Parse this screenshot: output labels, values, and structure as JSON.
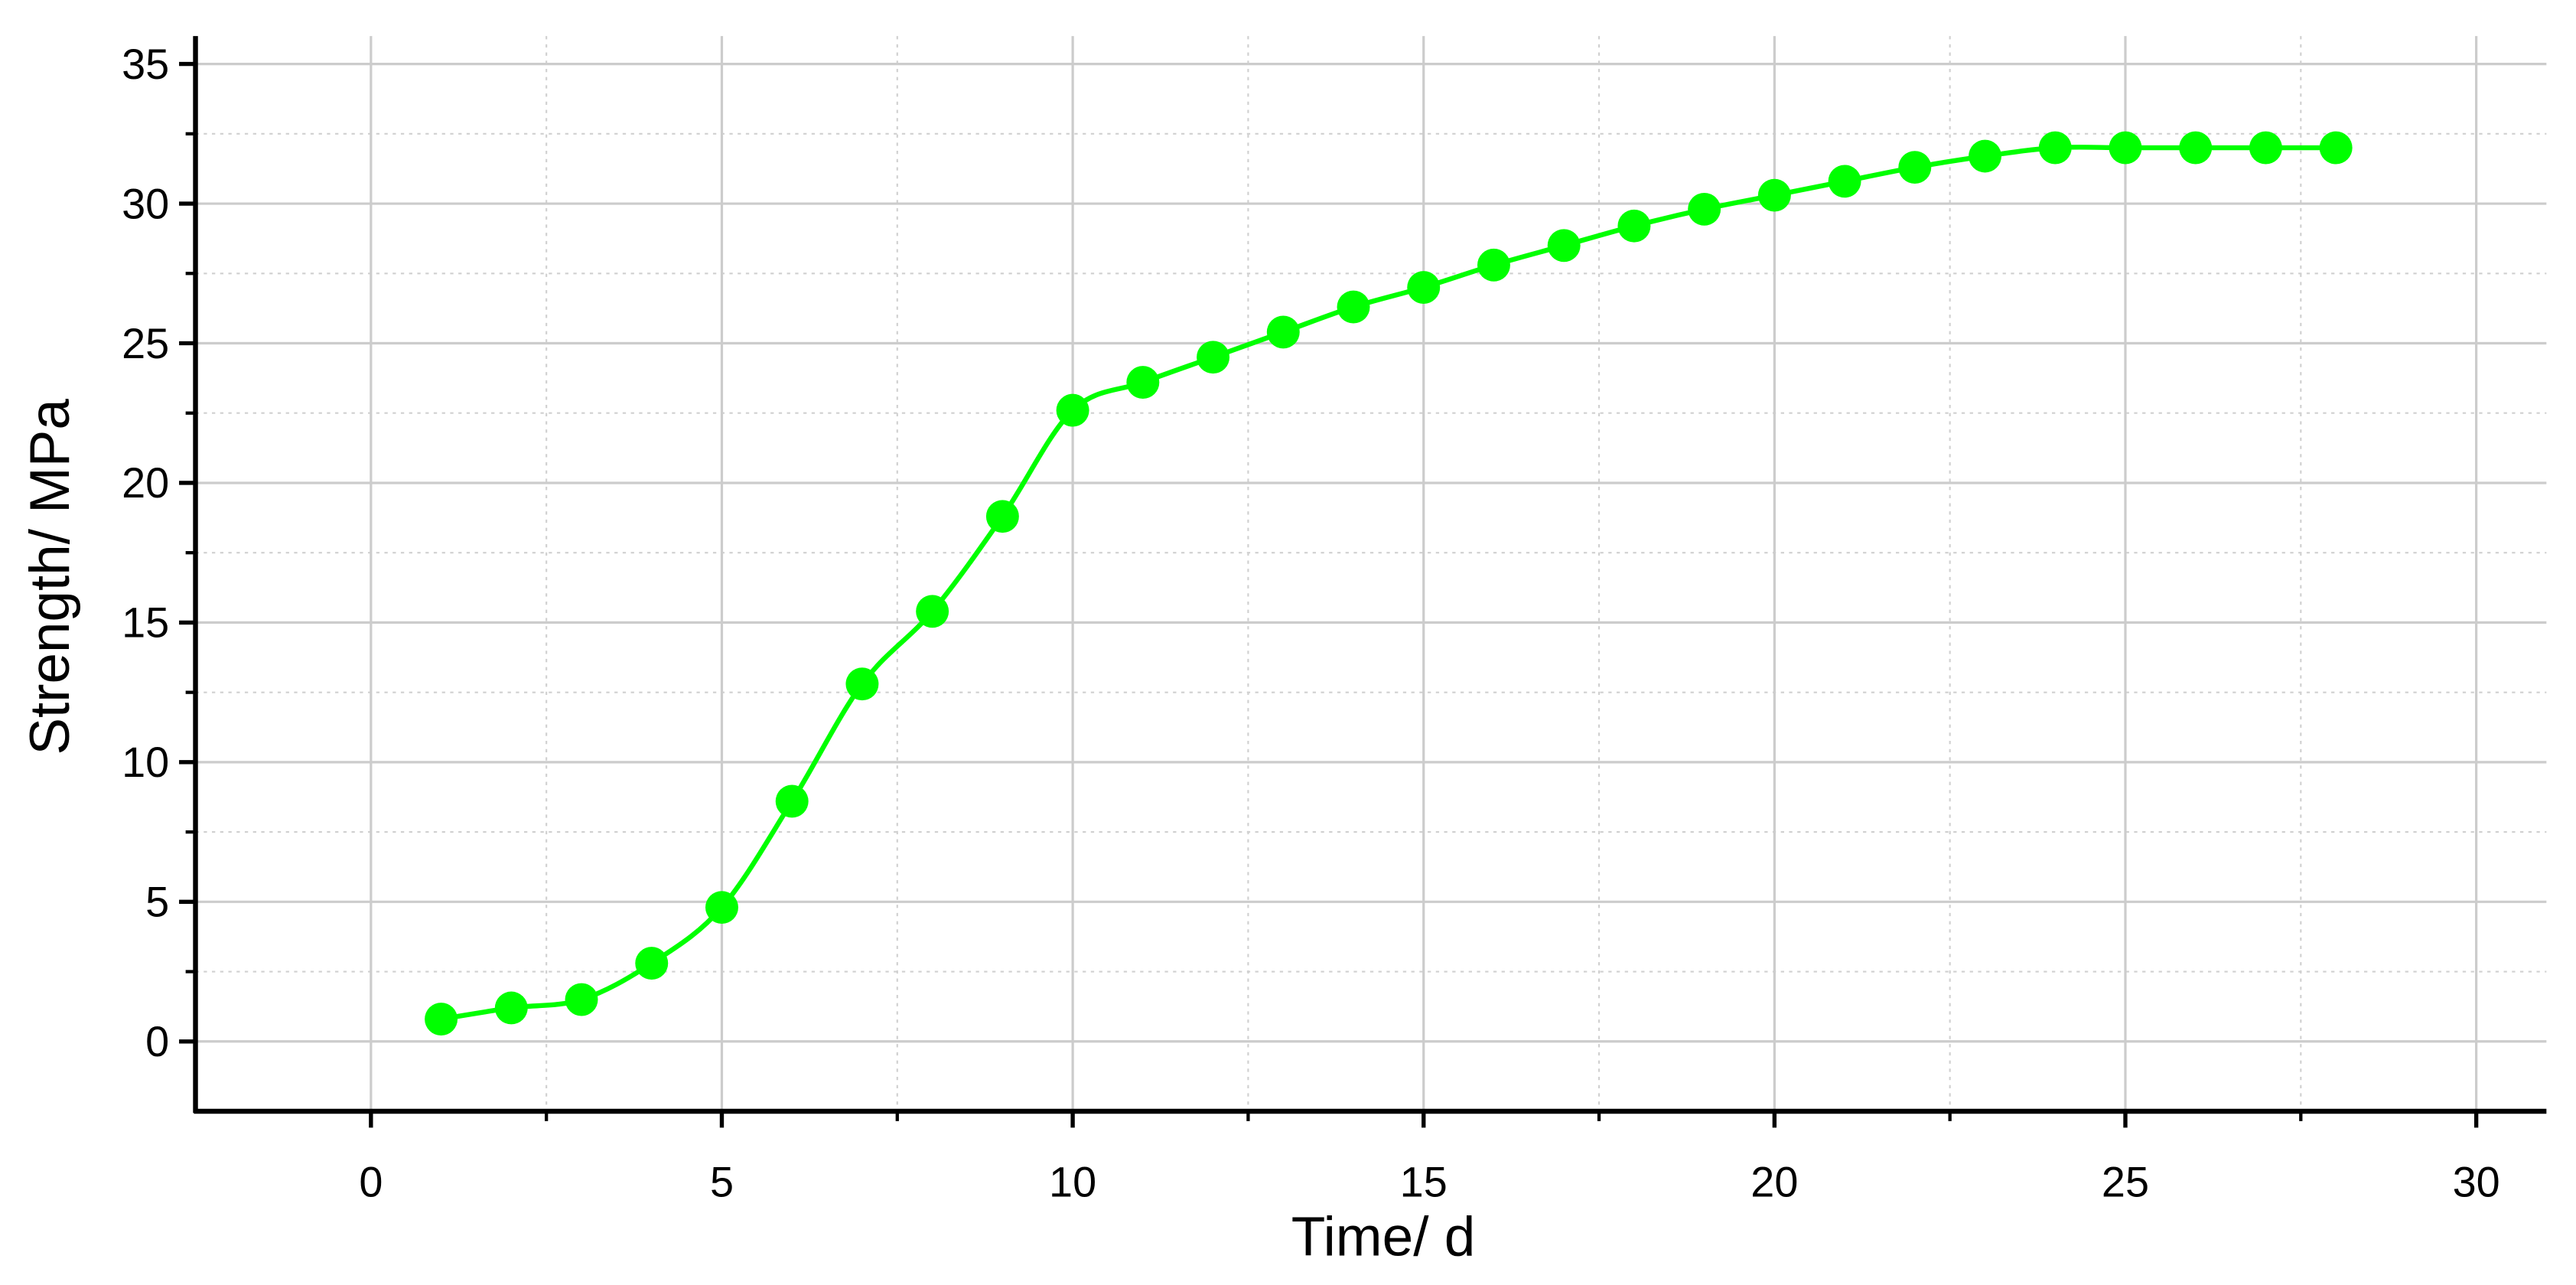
{
  "chart_data": {
    "type": "line",
    "x_label": "Time/ d",
    "y_label": "Strength/ MPa",
    "x": [
      1,
      2,
      3,
      4,
      5,
      6,
      7,
      8,
      9,
      10,
      11,
      12,
      13,
      14,
      15,
      16,
      17,
      18,
      19,
      20,
      21,
      22,
      23,
      24,
      25,
      26,
      27,
      28
    ],
    "series": [
      {
        "name": "Strength",
        "color": "#00ff00",
        "values": [
          0.8,
          1.2,
          1.5,
          2.8,
          4.8,
          8.6,
          12.8,
          15.4,
          18.8,
          22.6,
          23.6,
          24.5,
          25.4,
          26.3,
          27.0,
          27.8,
          28.5,
          29.2,
          29.8,
          30.3,
          30.8,
          31.3,
          31.7,
          32.0,
          32.0,
          32.0,
          32.0,
          32.0
        ]
      }
    ],
    "xlim": [
      -2.5,
      31
    ],
    "ylim": [
      -2.5,
      36
    ],
    "xticks": [
      0,
      5,
      10,
      15,
      20,
      25,
      30
    ],
    "yticks": [
      0,
      5,
      10,
      15,
      20,
      25,
      30,
      35
    ],
    "grid": true,
    "minor_grid": true
  }
}
